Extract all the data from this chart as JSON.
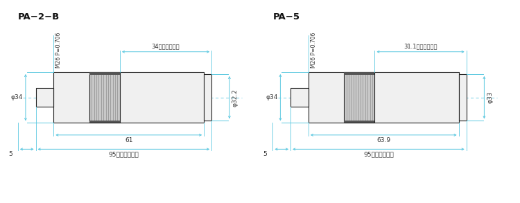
{
  "bg_color": "#ffffff",
  "line_color": "#222222",
  "dim_color": "#5bc8e0",
  "center_line_color": "#5bc8e0",
  "body_fill": "#f0f0f0",
  "knurl_fill": "#c8c8c8",
  "knurl_line": "#888888",
  "title_color": "#111111",
  "dim_text_color": "#333333",
  "left_title": "PA−2−B",
  "right_title": "PA−5",
  "left": {
    "thread_label": "M26 P=0.706",
    "working_dist": "34（作動距離）",
    "body_len_label": "61",
    "focal_dist_label": "95（同焦距離）",
    "dia_left_label": "φ34",
    "dia_right_label": "φ32.2",
    "offset_label": "5"
  },
  "right": {
    "thread_label": "M26 P=0.706",
    "working_dist": "31.1（作動距離）",
    "body_len_label": "63.9",
    "focal_dist_label": "95（同焦距離）",
    "dia_left_label": "φ34",
    "dia_right_label": "φ33",
    "offset_label": "5"
  }
}
